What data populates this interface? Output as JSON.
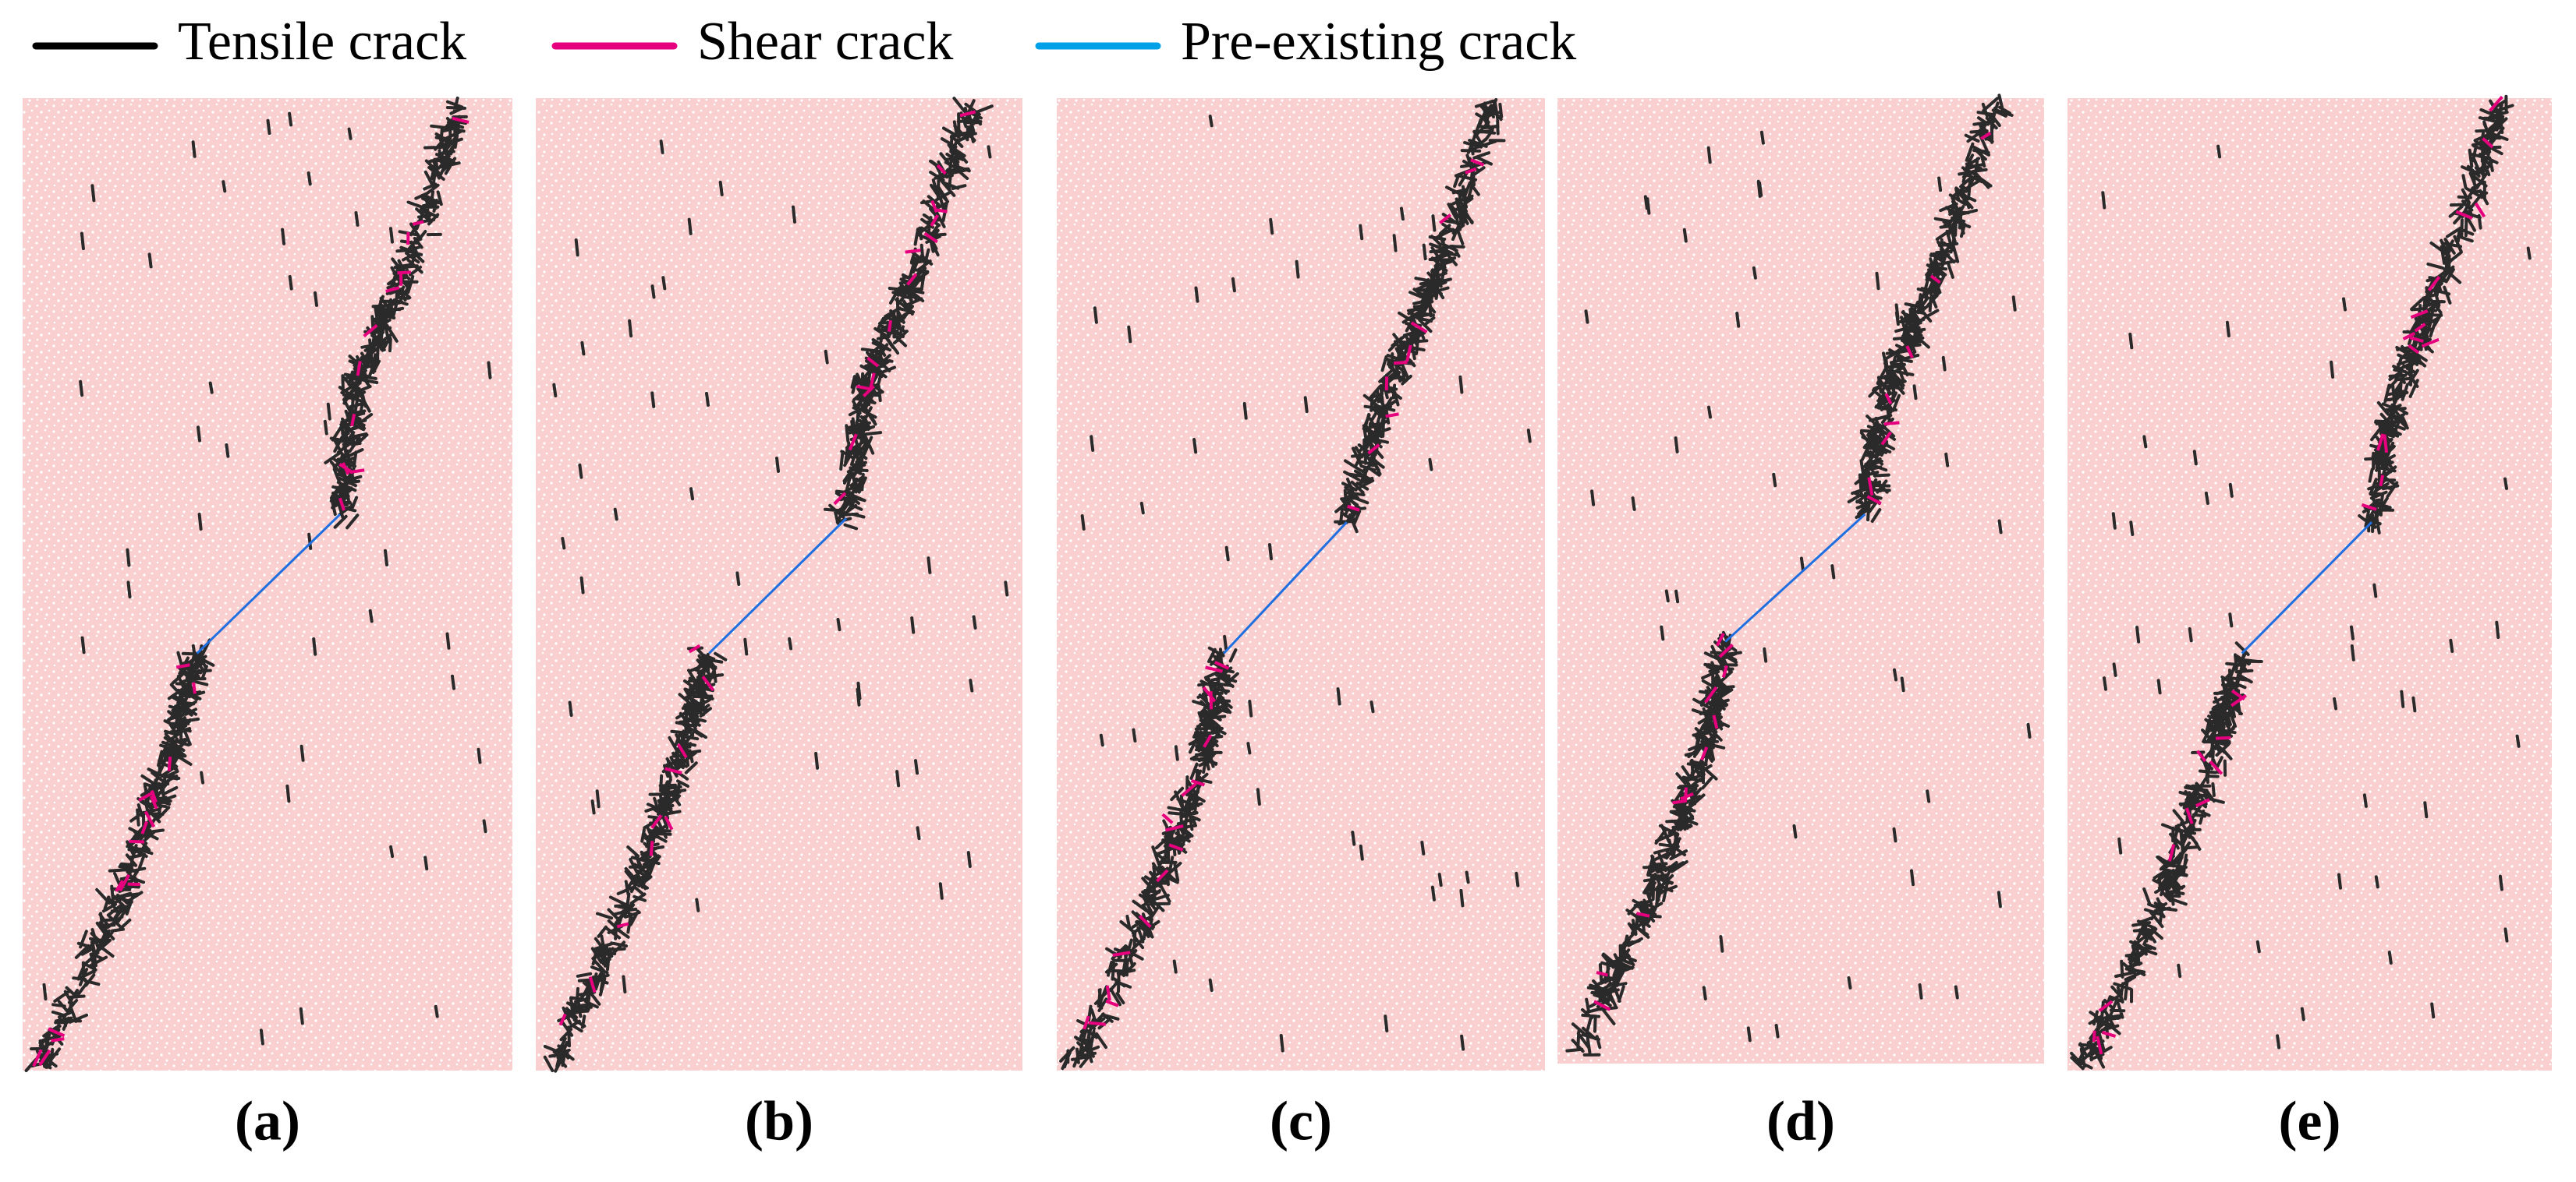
{
  "legend": {
    "items": [
      {
        "label": "Tensile crack",
        "color": "#000000"
      },
      {
        "label": "Shear crack",
        "color": "#e6007e"
      },
      {
        "label": "Pre-existing crack",
        "color": "#00a0e9"
      }
    ]
  },
  "panels": [
    {
      "label": "(a)"
    },
    {
      "label": "(b)"
    },
    {
      "label": "(c)"
    },
    {
      "label": "(d)"
    },
    {
      "label": "(e)"
    }
  ]
}
